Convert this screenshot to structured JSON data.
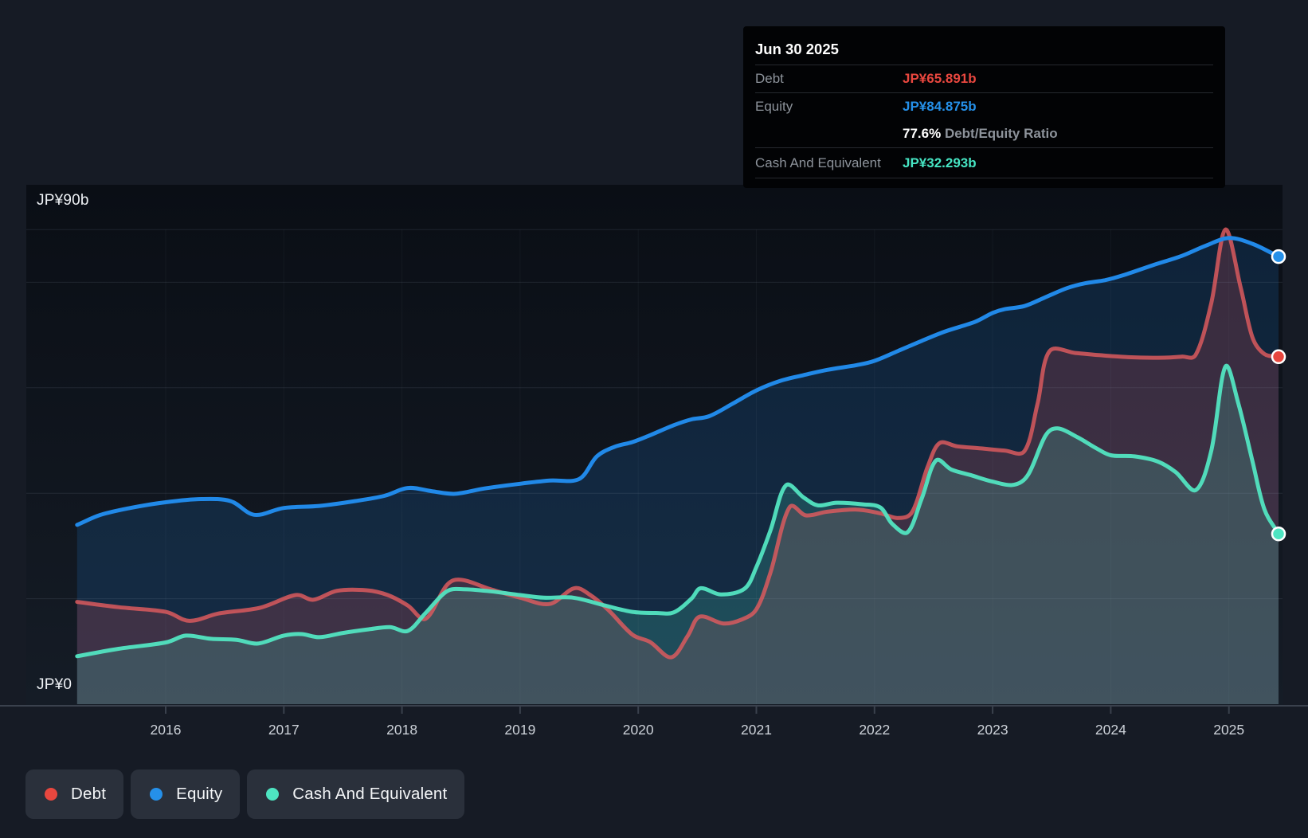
{
  "tooltip": {
    "date": "Jun 30 2025",
    "debt_label": "Debt",
    "debt_value": "JP¥65.891b",
    "equity_label": "Equity",
    "equity_value": "JP¥84.875b",
    "ratio_value": "77.6%",
    "ratio_label": "Debt/Equity Ratio",
    "cash_label": "Cash And Equivalent",
    "cash_value": "JP¥32.293b"
  },
  "y_axis": {
    "top_label": "JP¥90b",
    "zero_label": "JP¥0"
  },
  "x_axis": {
    "years": [
      "2016",
      "2017",
      "2018",
      "2019",
      "2020",
      "2021",
      "2022",
      "2023",
      "2024",
      "2025"
    ]
  },
  "legend": {
    "items": [
      {
        "label": "Debt",
        "color": "#e8473f"
      },
      {
        "label": "Equity",
        "color": "#2590e9"
      },
      {
        "label": "Cash And Equivalent",
        "color": "#4ee4c1"
      }
    ]
  },
  "colors": {
    "debt_accent": "#e8473f",
    "equity_accent": "#2590e9",
    "cash_accent": "#46e5c3",
    "page_background": "#161b25",
    "plot_background_top": "#0a0e15",
    "plot_background_bottom": "#151c26",
    "tooltip_background": "#020305",
    "gridline": "rgba(148,163,184,0.14)",
    "axis_line": "#3a414d"
  },
  "chart_data": {
    "type": "area",
    "title": "",
    "xlabel": "",
    "ylabel": "JP¥ billions",
    "x_range": [
      2015.25,
      2025.5
    ],
    "ylim": [
      0,
      90
    ],
    "y_gridlines": [
      90,
      80,
      60,
      40,
      20
    ],
    "x_ticks": [
      2016,
      2017,
      2018,
      2019,
      2020,
      2021,
      2022,
      2023,
      2024,
      2025
    ],
    "grid": true,
    "legend_position": "bottom-left",
    "last_point_date": "Jun 30 2025",
    "debt_equity_ratio_pct": 77.6,
    "series": [
      {
        "name": "Debt",
        "color": "#dd5a5e",
        "line_opacity": 0.84,
        "dot_color": "#e8473f",
        "fill": "rgba(229,80,86,0.20)",
        "end_value": 65.891,
        "points": [
          [
            2015.25,
            19.4
          ],
          [
            2015.6,
            18.4
          ],
          [
            2016.0,
            17.5
          ],
          [
            2016.2,
            15.8
          ],
          [
            2016.45,
            17.2
          ],
          [
            2016.8,
            18.3
          ],
          [
            2017.1,
            20.7
          ],
          [
            2017.25,
            19.8
          ],
          [
            2017.45,
            21.5
          ],
          [
            2017.7,
            21.6
          ],
          [
            2017.88,
            20.7
          ],
          [
            2018.05,
            18.7
          ],
          [
            2018.2,
            16.2
          ],
          [
            2018.38,
            22.6
          ],
          [
            2018.5,
            23.6
          ],
          [
            2018.75,
            21.8
          ],
          [
            2019.0,
            20.2
          ],
          [
            2019.25,
            19.0
          ],
          [
            2019.46,
            22.0
          ],
          [
            2019.6,
            20.6
          ],
          [
            2019.75,
            17.8
          ],
          [
            2019.95,
            13.2
          ],
          [
            2020.1,
            11.8
          ],
          [
            2020.28,
            8.9
          ],
          [
            2020.42,
            13.0
          ],
          [
            2020.52,
            16.6
          ],
          [
            2020.72,
            15.3
          ],
          [
            2020.87,
            16.0
          ],
          [
            2021.0,
            18.0
          ],
          [
            2021.12,
            25.0
          ],
          [
            2021.28,
            37.3
          ],
          [
            2021.42,
            35.8
          ],
          [
            2021.6,
            36.5
          ],
          [
            2021.85,
            36.9
          ],
          [
            2022.05,
            36.2
          ],
          [
            2022.2,
            35.3
          ],
          [
            2022.32,
            36.5
          ],
          [
            2022.45,
            45.0
          ],
          [
            2022.55,
            49.5
          ],
          [
            2022.7,
            48.9
          ],
          [
            2022.9,
            48.5
          ],
          [
            2023.1,
            48.1
          ],
          [
            2023.27,
            48.0
          ],
          [
            2023.38,
            57.0
          ],
          [
            2023.48,
            66.9
          ],
          [
            2023.7,
            66.6
          ],
          [
            2023.9,
            66.2
          ],
          [
            2024.15,
            65.8
          ],
          [
            2024.4,
            65.7
          ],
          [
            2024.6,
            65.9
          ],
          [
            2024.72,
            66.3
          ],
          [
            2024.85,
            76.0
          ],
          [
            2024.97,
            90.0
          ],
          [
            2025.1,
            79.0
          ],
          [
            2025.2,
            69.5
          ],
          [
            2025.3,
            66.4
          ],
          [
            2025.42,
            65.891
          ]
        ]
      },
      {
        "name": "Equity",
        "color": "#2189e8",
        "line_opacity": 1,
        "dot_color": "#2590e9",
        "fill": "rgba(33,134,235,0.16)",
        "end_value": 84.875,
        "points": [
          [
            2015.25,
            34.0
          ],
          [
            2015.45,
            35.9
          ],
          [
            2015.7,
            37.2
          ],
          [
            2016.0,
            38.3
          ],
          [
            2016.3,
            38.9
          ],
          [
            2016.55,
            38.5
          ],
          [
            2016.75,
            35.9
          ],
          [
            2017.0,
            37.2
          ],
          [
            2017.3,
            37.6
          ],
          [
            2017.6,
            38.5
          ],
          [
            2017.85,
            39.5
          ],
          [
            2018.05,
            41.0
          ],
          [
            2018.25,
            40.4
          ],
          [
            2018.45,
            39.9
          ],
          [
            2018.7,
            40.9
          ],
          [
            2019.0,
            41.8
          ],
          [
            2019.25,
            42.4
          ],
          [
            2019.5,
            42.7
          ],
          [
            2019.65,
            47.0
          ],
          [
            2019.8,
            48.8
          ],
          [
            2019.95,
            49.7
          ],
          [
            2020.1,
            51.0
          ],
          [
            2020.3,
            52.9
          ],
          [
            2020.45,
            54.0
          ],
          [
            2020.6,
            54.6
          ],
          [
            2020.8,
            57.0
          ],
          [
            2021.0,
            59.5
          ],
          [
            2021.2,
            61.3
          ],
          [
            2021.4,
            62.4
          ],
          [
            2021.6,
            63.4
          ],
          [
            2021.85,
            64.3
          ],
          [
            2022.0,
            65.1
          ],
          [
            2022.2,
            67.0
          ],
          [
            2022.4,
            68.9
          ],
          [
            2022.6,
            70.7
          ],
          [
            2022.85,
            72.5
          ],
          [
            2023.0,
            74.2
          ],
          [
            2023.1,
            74.9
          ],
          [
            2023.27,
            75.5
          ],
          [
            2023.45,
            77.2
          ],
          [
            2023.63,
            78.9
          ],
          [
            2023.78,
            79.8
          ],
          [
            2023.95,
            80.4
          ],
          [
            2024.1,
            81.3
          ],
          [
            2024.35,
            83.2
          ],
          [
            2024.6,
            85.0
          ],
          [
            2024.8,
            86.9
          ],
          [
            2025.0,
            88.4
          ],
          [
            2025.2,
            87.3
          ],
          [
            2025.42,
            84.875
          ]
        ]
      },
      {
        "name": "Cash And Equivalent",
        "color": "#52e2c0",
        "line_opacity": 0.96,
        "dot_color": "#4ee4c1",
        "fill": "rgba(80,227,194,0.18)",
        "end_value": 32.293,
        "points": [
          [
            2015.25,
            9.1
          ],
          [
            2015.6,
            10.5
          ],
          [
            2016.0,
            11.7
          ],
          [
            2016.17,
            13.0
          ],
          [
            2016.38,
            12.4
          ],
          [
            2016.6,
            12.2
          ],
          [
            2016.78,
            11.5
          ],
          [
            2017.0,
            13.0
          ],
          [
            2017.15,
            13.3
          ],
          [
            2017.3,
            12.7
          ],
          [
            2017.5,
            13.5
          ],
          [
            2017.72,
            14.2
          ],
          [
            2017.9,
            14.6
          ],
          [
            2018.05,
            13.9
          ],
          [
            2018.2,
            17.3
          ],
          [
            2018.38,
            21.4
          ],
          [
            2018.52,
            21.8
          ],
          [
            2018.75,
            21.4
          ],
          [
            2019.0,
            20.7
          ],
          [
            2019.2,
            20.2
          ],
          [
            2019.45,
            20.2
          ],
          [
            2019.72,
            18.7
          ],
          [
            2019.95,
            17.5
          ],
          [
            2020.15,
            17.3
          ],
          [
            2020.3,
            17.4
          ],
          [
            2020.45,
            20.0
          ],
          [
            2020.53,
            22.0
          ],
          [
            2020.7,
            20.8
          ],
          [
            2020.9,
            21.9
          ],
          [
            2021.0,
            26.0
          ],
          [
            2021.12,
            33.0
          ],
          [
            2021.25,
            41.5
          ],
          [
            2021.4,
            39.2
          ],
          [
            2021.52,
            37.7
          ],
          [
            2021.68,
            38.2
          ],
          [
            2021.9,
            37.9
          ],
          [
            2022.05,
            37.3
          ],
          [
            2022.15,
            34.2
          ],
          [
            2022.28,
            32.6
          ],
          [
            2022.4,
            39.0
          ],
          [
            2022.52,
            46.2
          ],
          [
            2022.65,
            44.5
          ],
          [
            2022.82,
            43.4
          ],
          [
            2023.0,
            42.2
          ],
          [
            2023.18,
            41.6
          ],
          [
            2023.3,
            43.5
          ],
          [
            2023.45,
            51.0
          ],
          [
            2023.55,
            52.3
          ],
          [
            2023.72,
            50.6
          ],
          [
            2023.88,
            48.5
          ],
          [
            2024.0,
            47.2
          ],
          [
            2024.2,
            47.0
          ],
          [
            2024.4,
            46.0
          ],
          [
            2024.55,
            44.0
          ],
          [
            2024.72,
            40.6
          ],
          [
            2024.85,
            48.0
          ],
          [
            2024.97,
            64.0
          ],
          [
            2025.08,
            57.0
          ],
          [
            2025.2,
            46.0
          ],
          [
            2025.3,
            37.0
          ],
          [
            2025.42,
            32.293
          ]
        ]
      }
    ]
  }
}
